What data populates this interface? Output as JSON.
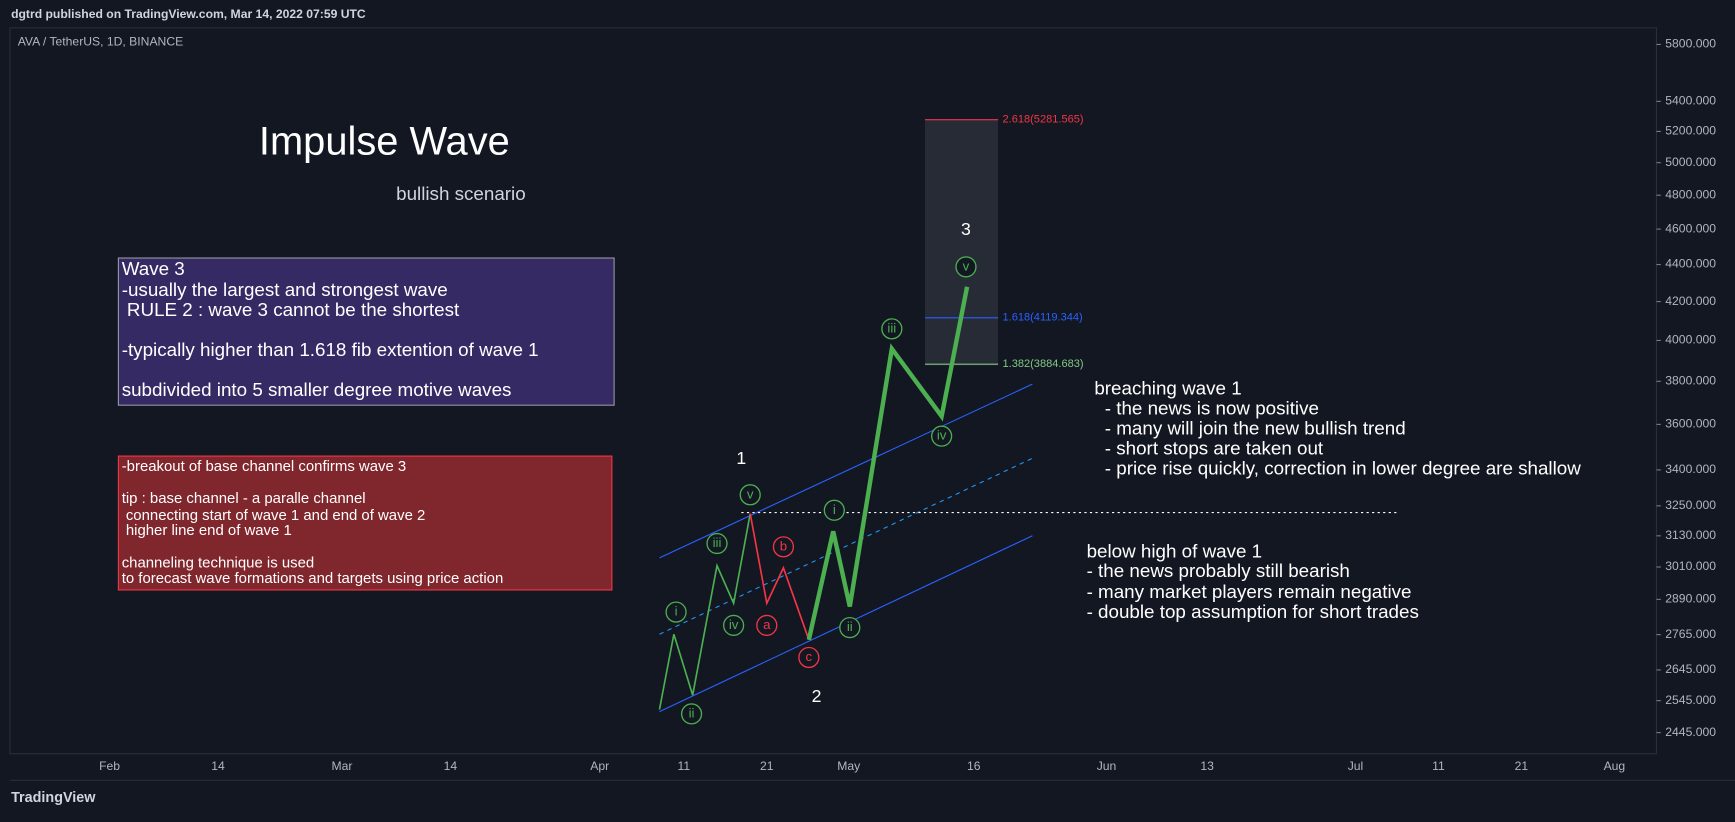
{
  "header": {
    "publisher": "dgtrd published on TradingView.com, Mar 14, 2022 07:59 UTC"
  },
  "footer": {
    "logo": "TradingView"
  },
  "chart_data": {
    "type": "line",
    "symbol": "AVA / TetherUS, 1D, BINANCE",
    "title": "Impulse Wave",
    "subtitle": "bullish scenario",
    "log_scale": true,
    "ylim": [
      2381,
      5922
    ],
    "yticks": [
      {
        "value": 5800,
        "label": "5800.000"
      },
      {
        "value": 5400,
        "label": "5400.000"
      },
      {
        "value": 5200,
        "label": "5200.000"
      },
      {
        "value": 5000,
        "label": "5000.000"
      },
      {
        "value": 4800,
        "label": "4800.000"
      },
      {
        "value": 4600,
        "label": "4600.000"
      },
      {
        "value": 4400,
        "label": "4400.000"
      },
      {
        "value": 4200,
        "label": "4200.000"
      },
      {
        "value": 4000,
        "label": "4000.000"
      },
      {
        "value": 3800,
        "label": "3800.000"
      },
      {
        "value": 3600,
        "label": "3600.000"
      },
      {
        "value": 3400,
        "label": "3400.000"
      },
      {
        "value": 3250,
        "label": "3250.000"
      },
      {
        "value": 3130,
        "label": "3130.000"
      },
      {
        "value": 3010,
        "label": "3010.000"
      },
      {
        "value": 2890,
        "label": "2890.000"
      },
      {
        "value": 2765,
        "label": "2765.000"
      },
      {
        "value": 2645,
        "label": "2645.000"
      },
      {
        "value": 2545,
        "label": "2545.000"
      },
      {
        "value": 2445,
        "label": "2445.000"
      }
    ],
    "x_labels": [
      "Feb",
      14,
      "Mar",
      14,
      "Apr",
      11,
      21,
      "May",
      16,
      "Jun",
      13,
      "Jul",
      11,
      21,
      "Aug"
    ],
    "fib_levels": [
      "2.618(5281.565)",
      "1.618(4119.344)",
      "1.382(3884.683)"
    ],
    "wave_numbers": [
      "1",
      "2",
      "3"
    ],
    "wave_labels": [
      "i",
      "ii",
      "iii",
      "iv",
      "v",
      "a",
      "b",
      "c",
      "i",
      "ii",
      "iii",
      "iv",
      "v"
    ],
    "wave3_box": [
      "Wave 3",
      "-usually the largest and strongest wave",
      " RULE 2 : wave 3 cannot be the shortest",
      "-typically higher than 1.618 fib extention of wave 1",
      "subdivided into 5 smaller degree motive waves"
    ],
    "channel_box": [
      "-breakout of base channel confirms wave 3",
      "tip : base channel - a paralle channel",
      " connecting start of wave 1 and end of wave 2",
      " higher line end of wave 1",
      "channeling technique is used",
      "to forecast wave formations and targets using price action"
    ],
    "above_note": [
      "breaching wave 1",
      "  - the news is now positive",
      "  - many will join the new bullish trend",
      "  - short stops are taken out",
      "  - price rise quickly, correction in lower degree are shallow"
    ],
    "below_note": [
      "below high of wave 1",
      "- the news probably still bearish",
      "- many market players remain negative",
      "- double top assumption for short trades"
    ]
  }
}
